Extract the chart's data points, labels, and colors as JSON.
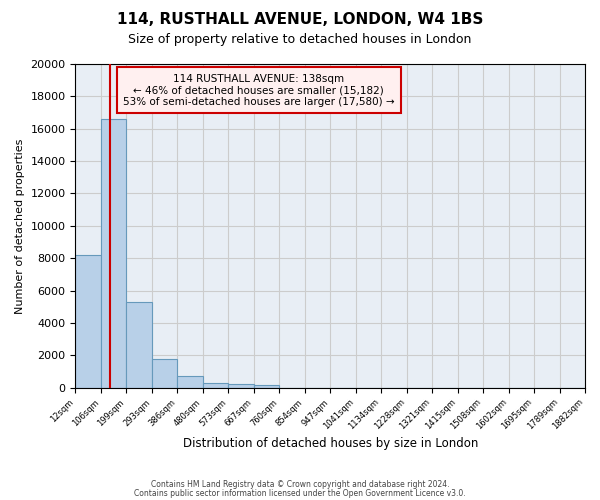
{
  "title": "114, RUSTHALL AVENUE, LONDON, W4 1BS",
  "subtitle": "Size of property relative to detached houses in London",
  "xlabel": "Distribution of detached houses by size in London",
  "ylabel": "Number of detached properties",
  "bar_values": [
    8200,
    16600,
    5300,
    1800,
    700,
    300,
    200,
    150,
    0,
    0,
    0,
    0,
    0,
    0,
    0,
    0,
    0,
    0,
    0,
    0
  ],
  "bin_labels": [
    "12sqm",
    "106sqm",
    "199sqm",
    "293sqm",
    "386sqm",
    "480sqm",
    "573sqm",
    "667sqm",
    "760sqm",
    "854sqm",
    "947sqm",
    "1041sqm",
    "1134sqm",
    "1228sqm",
    "1321sqm",
    "1415sqm",
    "1508sqm",
    "1602sqm",
    "1695sqm",
    "1789sqm",
    "1882sqm"
  ],
  "ylim": [
    0,
    20000
  ],
  "yticks": [
    0,
    2000,
    4000,
    6000,
    8000,
    10000,
    12000,
    14000,
    16000,
    18000,
    20000
  ],
  "bar_color": "#b8d0e8",
  "bar_edge_color": "#6699bb",
  "grid_color": "#cccccc",
  "red_line_color": "#cc0000",
  "property_size": 138,
  "property_name": "114 RUSTHALL AVENUE",
  "pct_smaller": 46,
  "num_smaller": 15182,
  "pct_larger": 53,
  "num_larger": 17580,
  "footer_line1": "Contains HM Land Registry data © Crown copyright and database right 2024.",
  "footer_line2": "Contains public sector information licensed under the Open Government Licence v3.0.",
  "background_color": "#e8eef5"
}
